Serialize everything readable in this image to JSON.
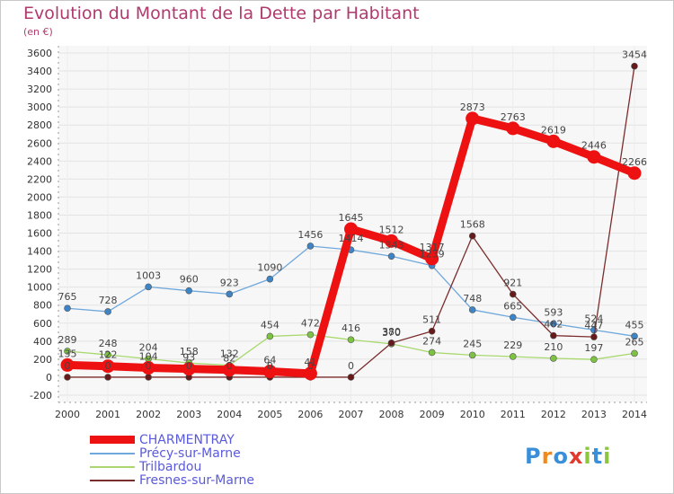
{
  "title": "Evolution du Montant de la Dette par Habitant",
  "subtitle": "(en €)",
  "logo": {
    "text": "Proxiti",
    "letters": [
      {
        "ch": "P",
        "color": "#3a8fd8"
      },
      {
        "ch": "r",
        "color": "#f08a1c"
      },
      {
        "ch": "o",
        "color": "#3a8fd8"
      },
      {
        "ch": "x",
        "color": "#e23a2e"
      },
      {
        "ch": "i",
        "color": "#8cc63f"
      },
      {
        "ch": "t",
        "color": "#3a8fd8"
      },
      {
        "ch": "i",
        "color": "#8cc63f"
      }
    ]
  },
  "chart_data": {
    "type": "line",
    "x": [
      "2000",
      "2001",
      "2002",
      "2003",
      "2004",
      "2005",
      "2006",
      "2007",
      "2008",
      "2009",
      "2010",
      "2011",
      "2012",
      "2013",
      "2014"
    ],
    "yticks": [
      -200,
      0,
      200,
      400,
      600,
      800,
      1000,
      1200,
      1400,
      1600,
      1800,
      2000,
      2200,
      2400,
      2600,
      2800,
      3000,
      3200,
      3400,
      3600
    ],
    "ylim": [
      -200,
      3600
    ],
    "grid": true,
    "legend_position": "bottom-left",
    "series": [
      {
        "name": "CHARMENTRAY",
        "color": "#ee1111",
        "point_color": "#ee1111",
        "values": [
          135,
          122,
          104,
          93,
          82,
          64,
          41,
          1645,
          1512,
          1317,
          2873,
          2763,
          2619,
          2446,
          2266
        ],
        "labels": [
          "135",
          "122",
          "104",
          "93",
          "82",
          "64",
          "41",
          "1645",
          "1512",
          "1317",
          "2873",
          "2763",
          "2619",
          "2446",
          "2266"
        ]
      },
      {
        "name": "Précy-sur-Marne",
        "color": "#6fa8dc",
        "point_color": "#3d85c6",
        "values": [
          765,
          728,
          1003,
          960,
          923,
          1090,
          1456,
          1414,
          1343,
          1239,
          748,
          665,
          593,
          524,
          455
        ],
        "labels": [
          "765",
          "728",
          "1003",
          "960",
          "923",
          "1090",
          "1456",
          "1414",
          "1343",
          "1239",
          "748",
          "665",
          "593",
          "524",
          "455"
        ]
      },
      {
        "name": "Trilbardou",
        "color": "#a8d86e",
        "point_color": "#7dc242",
        "values": [
          289,
          248,
          204,
          158,
          132,
          454,
          472,
          416,
          370,
          274,
          245,
          229,
          210,
          197,
          265
        ],
        "labels": [
          "289",
          "248",
          "204",
          "158",
          "132",
          "454",
          "472",
          "416",
          "370",
          "274",
          "245",
          "229",
          "210",
          "197",
          "265"
        ]
      },
      {
        "name": "Fresnes-sur-Marne",
        "color": "#7a2d2d",
        "point_color": "#661a1a",
        "values": [
          0,
          0,
          0,
          0,
          0,
          0,
          0,
          0,
          380,
          511,
          1568,
          921,
          462,
          447,
          3454
        ],
        "labels": [
          "0",
          "0",
          "0",
          "0",
          "0",
          "0",
          "0",
          "0",
          "380",
          "511",
          "1568",
          "921",
          "462",
          "447",
          "3454"
        ]
      }
    ]
  }
}
